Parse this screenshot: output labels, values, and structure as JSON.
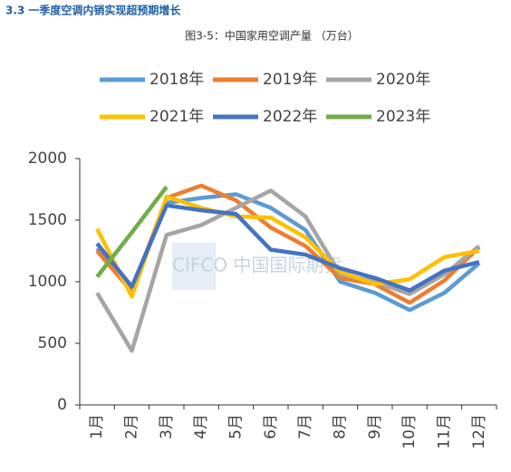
{
  "header": "3.3 一季度空调内销实现超预期增长",
  "chart_data": {
    "type": "line",
    "title": "图3-5：中国家用空调产量 （万台）",
    "watermark": "CIFCO 中国国际期货",
    "categories": [
      "1月",
      "2月",
      "3月",
      "4月",
      "5月",
      "6月",
      "7月",
      "8月",
      "9月",
      "10月",
      "11月",
      "12月"
    ],
    "series": [
      {
        "name": "2018年",
        "color": "#5b9bd5",
        "values": [
          1270,
          950,
          1640,
          1680,
          1710,
          1600,
          1420,
          1000,
          910,
          770,
          910,
          1150
        ]
      },
      {
        "name": "2019年",
        "color": "#ed7d31",
        "values": [
          1250,
          920,
          1680,
          1780,
          1660,
          1440,
          1290,
          1030,
          980,
          830,
          1010,
          1280
        ]
      },
      {
        "name": "2020年",
        "color": "#a5a5a5",
        "values": [
          910,
          440,
          1380,
          1460,
          1600,
          1740,
          1530,
          1060,
          1000,
          900,
          1060,
          1290
        ]
      },
      {
        "name": "2021年",
        "color": "#ffc000",
        "values": [
          1430,
          880,
          1690,
          1600,
          1530,
          1520,
          1360,
          1080,
          980,
          1020,
          1200,
          1250
        ]
      },
      {
        "name": "2022年",
        "color": "#4472c4",
        "values": [
          1310,
          960,
          1620,
          1580,
          1550,
          1260,
          1220,
          1110,
          1030,
          930,
          1090,
          1160
        ]
      },
      {
        "name": "2023年",
        "color": "#70ad47",
        "values": [
          1040,
          1400,
          1770,
          null,
          null,
          null,
          null,
          null,
          null,
          null,
          null,
          null
        ]
      }
    ],
    "ylim": [
      0,
      2000
    ],
    "yticks": [
      0,
      500,
      1000,
      1500,
      2000
    ],
    "grid": false
  }
}
